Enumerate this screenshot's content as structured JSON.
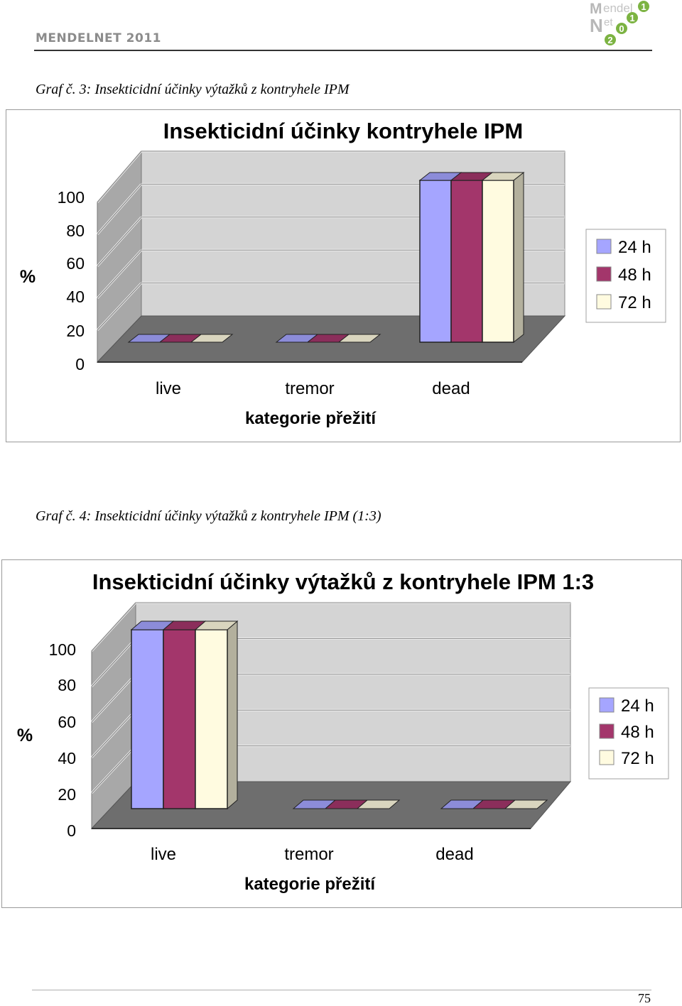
{
  "header": {
    "title": "MENDELNET 2011",
    "logo_text": "MendelNet 2011"
  },
  "captions": [
    "Graf č. 3: Insekticidní účinky výtažků z kontryhele IPM",
    "Graf č. 4: Insekticidní účinky výtažků z kontryhele IPM (1:3)"
  ],
  "colors": {
    "series_24h": "#a5a5ff",
    "series_48h": "#a3366b",
    "series_72h": "#fffbe0",
    "wall": "#d4d4d4",
    "side_wall": "#a8a8a8",
    "floor": "#6e6e6e"
  },
  "chart_data": [
    {
      "type": "bar",
      "title": "Insekticidní účinky kontryhele IPM",
      "xlabel": "kategorie přežití",
      "ylabel": "%",
      "categories": [
        "live",
        "tremor",
        "dead"
      ],
      "yticks": [
        0,
        20,
        40,
        60,
        80,
        100
      ],
      "ylim": [
        0,
        100
      ],
      "legend": "right",
      "series": [
        {
          "name": "24 h",
          "values": [
            0,
            0,
            100
          ]
        },
        {
          "name": "48 h",
          "values": [
            0,
            0,
            100
          ]
        },
        {
          "name": "72 h",
          "values": [
            0,
            0,
            100
          ]
        }
      ]
    },
    {
      "type": "bar",
      "title": "Insekticidní účinky výtažků z kontryhele IPM 1:3",
      "xlabel": "kategorie přežití",
      "ylabel": "%",
      "categories": [
        "live",
        "tremor",
        "dead"
      ],
      "yticks": [
        0,
        20,
        40,
        60,
        80,
        100
      ],
      "ylim": [
        0,
        100
      ],
      "legend": "right",
      "series": [
        {
          "name": "24 h",
          "values": [
            100,
            0,
            0
          ]
        },
        {
          "name": "48 h",
          "values": [
            100,
            0,
            0
          ]
        },
        {
          "name": "72 h",
          "values": [
            100,
            0,
            0
          ]
        }
      ]
    }
  ],
  "page_number": "75"
}
